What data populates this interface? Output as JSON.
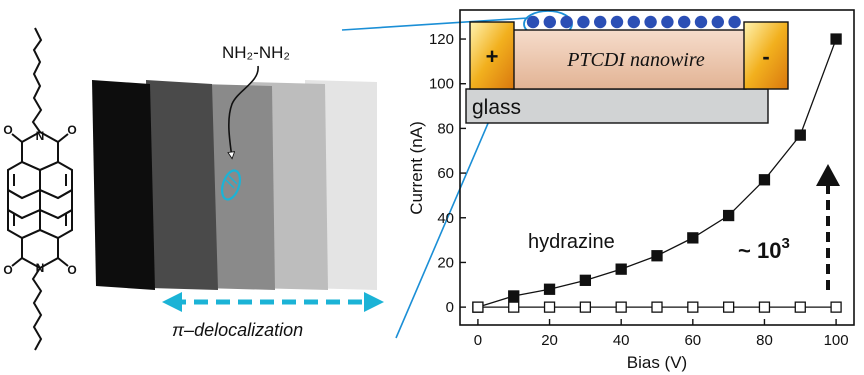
{
  "figure": {
    "hydrazine_formula": "NH₂-NH₂",
    "delocalization_label": "π–delocalization",
    "arrow_color": "#1bb3d6",
    "sheet_colors": [
      "#0d0d0d",
      "#4a4a4a",
      "#8a8a8a",
      "#bdbdbd",
      "#e4e4e4"
    ],
    "molecule_atom_labels": [
      "O",
      "N",
      "O",
      "O",
      "N",
      "O"
    ]
  },
  "inset": {
    "wire_label": "PTCDI nanowire",
    "substrate_label": "glass",
    "electrode_positive": "+",
    "electrode_negative": "-",
    "electrode_color": "#f2b01e",
    "wire_color": "#e9c3a6",
    "glass_color": "#d1d3d4",
    "dot_color": "#2b4fb5"
  },
  "annotations": {
    "series_label": "hydrazine",
    "ratio_prefix": "~ 10",
    "ratio_exponent": "3"
  },
  "chart_data": {
    "type": "line",
    "xlabel": "Bias (V)",
    "ylabel": "Current (nA)",
    "xlim": [
      -5,
      105
    ],
    "ylim": [
      -8,
      133
    ],
    "xticks": [
      0,
      20,
      40,
      60,
      80,
      100
    ],
    "yticks": [
      0,
      20,
      40,
      60,
      80,
      100,
      120
    ],
    "grid": false,
    "series": [
      {
        "marker": "filled-square",
        "x": [
          0,
          10,
          20,
          30,
          40,
          50,
          60,
          70,
          80,
          90,
          100
        ],
        "y": [
          0,
          5,
          8,
          12,
          17,
          23,
          31,
          41,
          57,
          77,
          120
        ]
      },
      {
        "marker": "open-square",
        "x": [
          0,
          10,
          20,
          30,
          40,
          50,
          60,
          70,
          80,
          90,
          100
        ],
        "y": [
          0,
          0,
          0,
          0,
          0,
          0,
          0,
          0,
          0,
          0,
          0
        ]
      }
    ]
  }
}
